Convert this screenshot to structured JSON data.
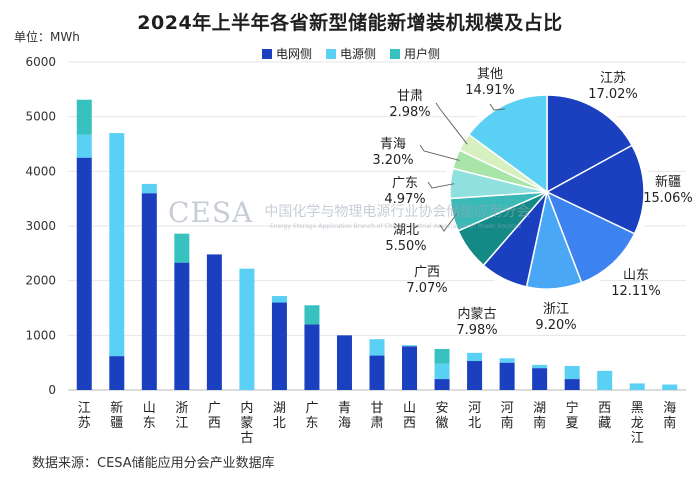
{
  "title": "2024年上半年各省新型储能新增装机规模及占比",
  "unit": "单位：MWh",
  "source": "数据来源：CESA储能应用分会产业数据库",
  "watermark": {
    "logo": "CESA",
    "text": "中国化学与物理电源行业协会储能应用分会",
    "sub": "Energy Storage Application Branch of China Industrial Association of Power Sources"
  },
  "colors": {
    "grid": "#1a3fbf",
    "source": "#5bd0f5",
    "user": "#37c2c0"
  },
  "chart_data": [
    {
      "type": "bar",
      "stacked": true,
      "title": "2024年上半年各省新型储能新增装机规模及占比",
      "ylabel": "单位：MWh",
      "ylim": [
        0,
        6000
      ],
      "yticks": [
        "0",
        "1000",
        "2000",
        "3000",
        "4000",
        "5000",
        "6000"
      ],
      "legend_position": "top",
      "categories": [
        "江苏",
        "新疆",
        "山东",
        "浙江",
        "广西",
        "内蒙古",
        "湖北",
        "广东",
        "青海",
        "甘肃",
        "山西",
        "安徽",
        "河北",
        "河南",
        "湖南",
        "宁夏",
        "西藏",
        "黑龙江",
        "海南"
      ],
      "series": [
        {
          "name": "电网侧",
          "values": [
            4250,
            620,
            3600,
            2330,
            2480,
            0,
            1600,
            1200,
            1000,
            630,
            800,
            200,
            530,
            500,
            400,
            200,
            0,
            0,
            0
          ]
        },
        {
          "name": "电源侧",
          "values": [
            420,
            4080,
            170,
            0,
            0,
            2220,
            120,
            0,
            0,
            300,
            20,
            280,
            150,
            80,
            60,
            240,
            350,
            120,
            100
          ]
        },
        {
          "name": "用户侧",
          "values": [
            640,
            0,
            0,
            530,
            0,
            0,
            0,
            350,
            0,
            0,
            0,
            270,
            0,
            0,
            0,
            0,
            0,
            0,
            0
          ]
        }
      ]
    },
    {
      "type": "pie",
      "slices": [
        {
          "label": "江苏",
          "value": 17.02,
          "pct": "17.02%",
          "color": "#1a3fbf"
        },
        {
          "label": "新疆",
          "value": 15.06,
          "pct": "15.06%",
          "color": "#1a3fbf"
        },
        {
          "label": "山东",
          "value": 12.11,
          "pct": "12.11%",
          "color": "#3c83f0"
        },
        {
          "label": "浙江",
          "value": 9.2,
          "pct": "9.20%",
          "color": "#4aa7f5"
        },
        {
          "label": "内蒙古",
          "value": 7.98,
          "pct": "7.98%",
          "color": "#1a3fbf"
        },
        {
          "label": "广西",
          "value": 7.07,
          "pct": "7.07%",
          "color": "#148a87"
        },
        {
          "label": "湖北",
          "value": 5.5,
          "pct": "5.50%",
          "color": "#3ab9b7"
        },
        {
          "label": "广东",
          "value": 4.97,
          "pct": "4.97%",
          "color": "#8fe0de"
        },
        {
          "label": "青海",
          "value": 3.2,
          "pct": "3.20%",
          "color": "#a9e5a8"
        },
        {
          "label": "甘肃",
          "value": 2.98,
          "pct": "2.98%",
          "color": "#d8efbf"
        },
        {
          "label": "其他",
          "value": 14.91,
          "pct": "14.91%",
          "color": "#5bd0f5"
        }
      ]
    }
  ]
}
